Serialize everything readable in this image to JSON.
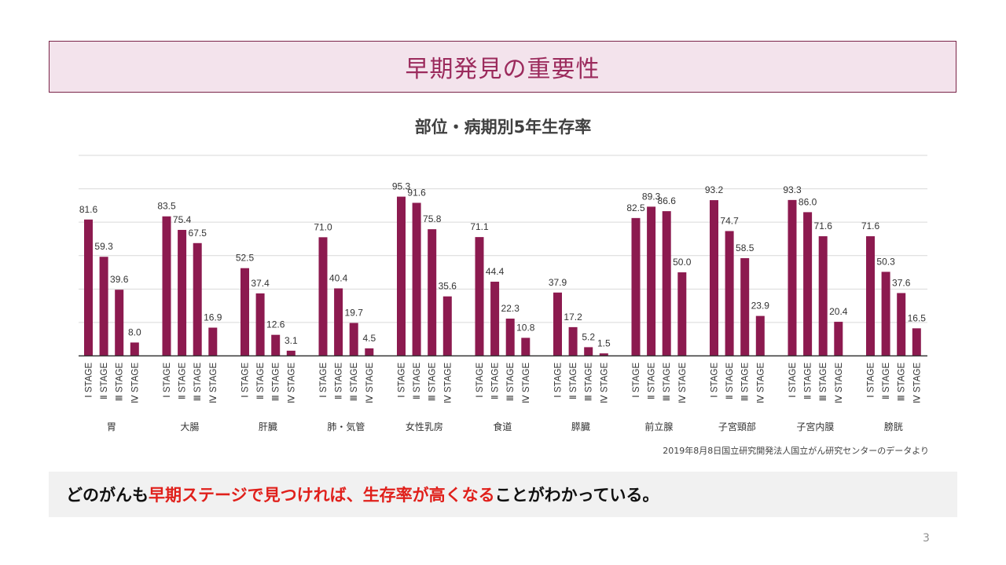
{
  "slide": {
    "title": "早期発見の重要性",
    "note_parts": [
      {
        "text": "どのがんも",
        "highlight": false
      },
      {
        "text": "早期ステージで見つければ、生存率が高くなる",
        "highlight": true
      },
      {
        "text": "ことがわかっている。",
        "highlight": false
      }
    ],
    "source": "2019年8月8日国立研究開発法人国立がん研究センターのデータより",
    "page_number": "3"
  },
  "colors": {
    "bar": "#8c1a4f",
    "header_bg": "#f3e3ec",
    "header_text": "#9b2a5c",
    "highlight": "#e0201b"
  },
  "chart_data": {
    "type": "bar",
    "title": "部位・病期別5年生存率",
    "xlabel": "",
    "ylabel": "",
    "ylim": [
      0,
      120
    ],
    "grid": true,
    "y_tick_step": 20,
    "stages": [
      "Ⅰ STAGE",
      "Ⅱ STAGE",
      "Ⅲ STAGE",
      "Ⅳ STAGE"
    ],
    "categories": [
      "胃",
      "大腸",
      "肝臓",
      "肺・気管",
      "女性乳房",
      "食道",
      "膵臓",
      "前立腺",
      "子宮頸部",
      "子宮内膜",
      "膀胱"
    ],
    "values": [
      [
        81.6,
        59.3,
        39.6,
        8.0
      ],
      [
        83.5,
        75.4,
        67.5,
        16.9
      ],
      [
        52.5,
        37.4,
        12.6,
        3.1
      ],
      [
        71.0,
        40.4,
        19.7,
        4.5
      ],
      [
        95.3,
        91.6,
        75.8,
        35.6
      ],
      [
        71.1,
        44.4,
        22.3,
        10.8
      ],
      [
        37.9,
        17.2,
        5.2,
        1.5
      ],
      [
        82.5,
        89.3,
        86.6,
        50.0
      ],
      [
        93.2,
        74.7,
        58.5,
        23.9
      ],
      [
        93.3,
        86.0,
        71.6,
        20.4
      ],
      [
        71.6,
        50.3,
        37.6,
        16.5
      ]
    ]
  }
}
